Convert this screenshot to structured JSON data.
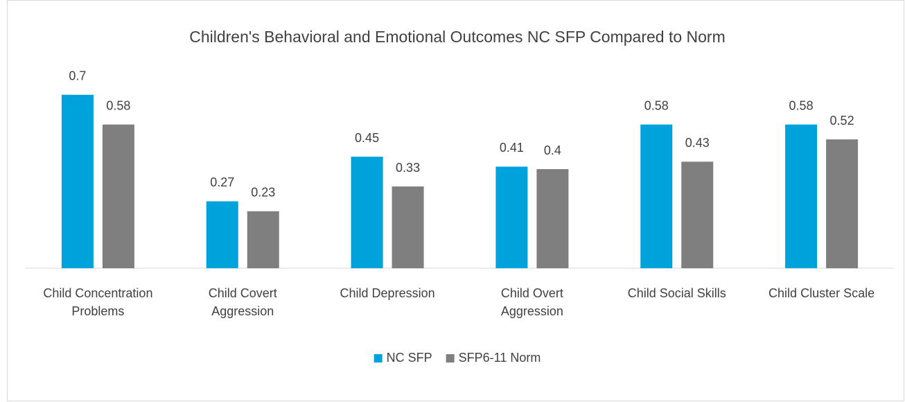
{
  "chart_data": {
    "type": "bar",
    "title": "Children's Behavioral and Emotional Outcomes NC SFP Compared to Norm",
    "categories": [
      "Child Concentration Problems",
      "Child Covert Aggression",
      "Child Depression",
      "Child Overt Aggression",
      "Child Social Skills",
      "Child Cluster Scale"
    ],
    "series": [
      {
        "name": "NC SFP",
        "color": "#00a2dc",
        "values": [
          0.7,
          0.27,
          0.45,
          0.41,
          0.58,
          0.58
        ]
      },
      {
        "name": "SFP6-11 Norm",
        "color": "#7f7f7f",
        "values": [
          0.58,
          0.23,
          0.33,
          0.4,
          0.43,
          0.52
        ]
      }
    ],
    "ylim": [
      0,
      0.8
    ],
    "legend": "bottom"
  }
}
